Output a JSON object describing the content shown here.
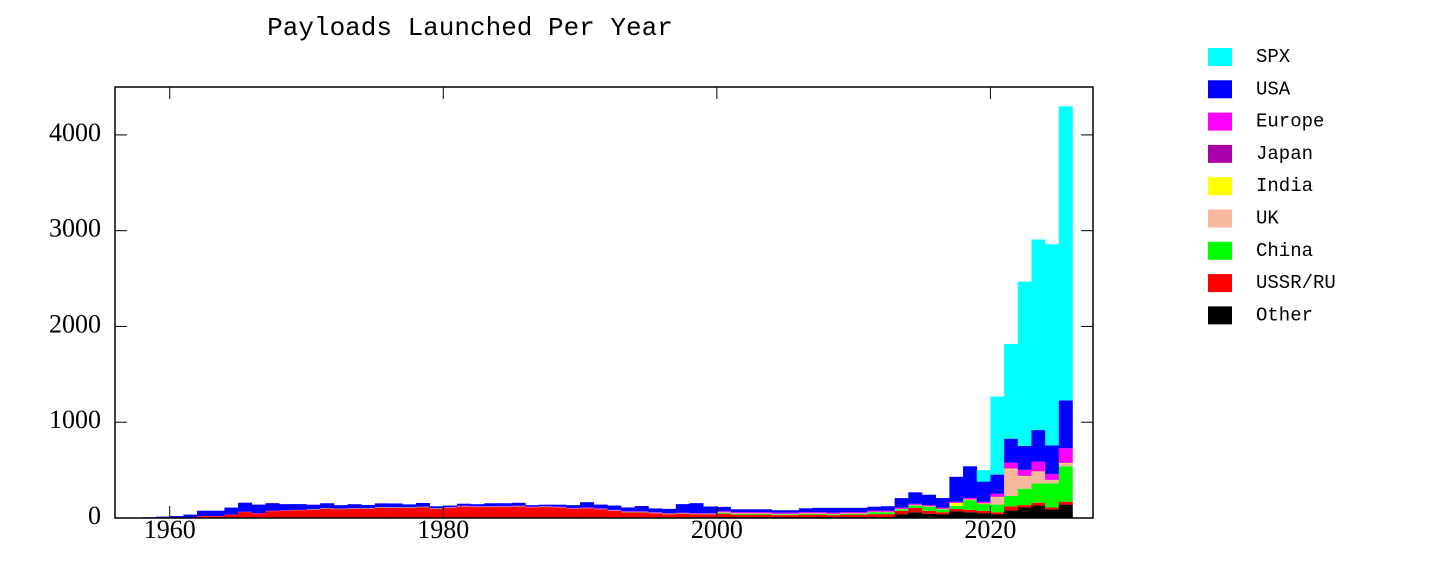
{
  "chart_data": {
    "type": "stacked_histogram",
    "title": "Payloads Launched Per Year",
    "bins": [
      1957,
      1958,
      1959,
      1960,
      1961,
      1962,
      1963,
      1964,
      1965,
      1966,
      1967,
      1968,
      1969,
      1970,
      1971,
      1972,
      1973,
      1974,
      1975,
      1976,
      1977,
      1978,
      1979,
      1980,
      1981,
      1982,
      1983,
      1984,
      1985,
      1986,
      1987,
      1988,
      1989,
      1990,
      1991,
      1992,
      1993,
      1994,
      1995,
      1996,
      1997,
      1998,
      1999,
      2000,
      2001,
      2002,
      2003,
      2004,
      2005,
      2006,
      2007,
      2008,
      2009,
      2010,
      2011,
      2012,
      2013,
      2014,
      2015,
      2016,
      2017,
      2018,
      2019,
      2020,
      2021,
      2022,
      2023,
      2024,
      2025,
      2026
    ],
    "xlim": [
      1956,
      2027.5
    ],
    "xticks": [
      1960,
      1980,
      2000,
      2020
    ],
    "ylim": [
      0,
      4500
    ],
    "yticks": [
      0,
      1000,
      2000,
      3000,
      4000
    ],
    "series": [
      {
        "name": "SPX",
        "color": "#00ffff",
        "values": [
          0,
          0,
          0,
          0,
          0,
          0,
          0,
          0,
          0,
          0,
          0,
          0,
          0,
          0,
          0,
          0,
          0,
          0,
          0,
          0,
          0,
          0,
          0,
          0,
          0,
          0,
          0,
          0,
          0,
          0,
          0,
          0,
          0,
          0,
          0,
          0,
          0,
          0,
          0,
          0,
          0,
          0,
          0,
          0,
          0,
          0,
          0,
          0,
          0,
          0,
          0,
          0,
          0,
          0,
          0,
          0,
          0,
          0,
          0,
          0,
          0,
          2,
          120,
          815,
          990,
          1715,
          1990,
          2100,
          3070
        ]
      },
      {
        "name": "USA",
        "color": "#0000ff",
        "values": [
          0,
          7,
          11,
          17,
          29,
          55,
          55,
          73,
          95,
          90,
          80,
          65,
          60,
          45,
          50,
          35,
          40,
          32,
          38,
          38,
          28,
          38,
          18,
          16,
          20,
          20,
          30,
          30,
          30,
          15,
          15,
          20,
          30,
          55,
          40,
          45,
          40,
          55,
          40,
          45,
          90,
          105,
          70,
          45,
          30,
          30,
          30,
          25,
          25,
          40,
          45,
          50,
          45,
          45,
          40,
          45,
          100,
          120,
          110,
          100,
          260,
          330,
          210,
          200,
          250,
          250,
          330,
          300,
          500
        ]
      },
      {
        "name": "Europe",
        "color": "#ff00ff",
        "values": [
          0,
          0,
          0,
          0,
          0,
          0,
          0,
          0,
          2,
          2,
          2,
          2,
          2,
          2,
          2,
          2,
          2,
          2,
          2,
          2,
          2,
          2,
          2,
          5,
          5,
          5,
          5,
          5,
          5,
          5,
          5,
          5,
          5,
          5,
          5,
          5,
          5,
          5,
          5,
          5,
          5,
          5,
          5,
          10,
          10,
          10,
          10,
          10,
          10,
          10,
          10,
          10,
          10,
          10,
          10,
          10,
          10,
          10,
          10,
          10,
          10,
          15,
          15,
          30,
          60,
          60,
          100,
          60,
          150
        ]
      },
      {
        "name": "Japan",
        "color": "#aa00aa",
        "values": [
          0,
          0,
          0,
          0,
          0,
          0,
          0,
          0,
          0,
          0,
          0,
          0,
          0,
          2,
          2,
          2,
          2,
          2,
          2,
          2,
          2,
          2,
          2,
          2,
          2,
          2,
          2,
          2,
          2,
          2,
          2,
          2,
          2,
          3,
          3,
          3,
          3,
          3,
          3,
          3,
          3,
          3,
          3,
          3,
          3,
          3,
          3,
          3,
          3,
          3,
          3,
          3,
          3,
          3,
          3,
          3,
          3,
          3,
          3,
          3,
          3,
          3,
          3,
          3,
          3,
          3,
          3,
          3,
          3
        ]
      },
      {
        "name": "India",
        "color": "#ffff00",
        "values": [
          0,
          0,
          0,
          0,
          0,
          0,
          0,
          0,
          0,
          0,
          0,
          0,
          0,
          0,
          0,
          0,
          0,
          0,
          1,
          1,
          1,
          1,
          1,
          1,
          1,
          1,
          1,
          1,
          1,
          1,
          1,
          1,
          1,
          1,
          1,
          1,
          1,
          1,
          1,
          1,
          1,
          1,
          1,
          3,
          3,
          3,
          3,
          3,
          3,
          3,
          3,
          3,
          3,
          3,
          3,
          3,
          3,
          3,
          3,
          3,
          30,
          5,
          5,
          5,
          5,
          5,
          5,
          5,
          5
        ]
      },
      {
        "name": "UK",
        "color": "#f8b8a0",
        "values": [
          0,
          0,
          0,
          0,
          0,
          1,
          1,
          1,
          1,
          1,
          1,
          1,
          1,
          1,
          1,
          1,
          1,
          1,
          1,
          0,
          0,
          0,
          0,
          0,
          0,
          0,
          0,
          0,
          0,
          0,
          0,
          0,
          0,
          0,
          0,
          0,
          0,
          0,
          0,
          0,
          0,
          0,
          0,
          2,
          2,
          2,
          2,
          2,
          2,
          2,
          2,
          2,
          2,
          2,
          2,
          2,
          2,
          2,
          2,
          2,
          2,
          2,
          2,
          75,
          280,
          130,
          120,
          30,
          30
        ]
      },
      {
        "name": "China",
        "color": "#00ff00",
        "values": [
          0,
          0,
          0,
          0,
          0,
          0,
          0,
          0,
          0,
          0,
          0,
          0,
          0,
          2,
          2,
          2,
          2,
          2,
          2,
          2,
          2,
          2,
          2,
          2,
          2,
          2,
          2,
          2,
          2,
          2,
          2,
          2,
          2,
          2,
          2,
          2,
          2,
          2,
          2,
          2,
          2,
          2,
          2,
          8,
          8,
          8,
          8,
          8,
          8,
          8,
          8,
          8,
          8,
          8,
          20,
          20,
          15,
          25,
          40,
          30,
          30,
          100,
          70,
          80,
          110,
          170,
          200,
          250,
          370
        ]
      },
      {
        "name": "USSR/RU",
        "color": "#ff0000",
        "values": [
          2,
          1,
          3,
          3,
          6,
          20,
          20,
          35,
          60,
          45,
          70,
          75,
          80,
          85,
          95,
          90,
          95,
          95,
          105,
          105,
          105,
          110,
          95,
          100,
          115,
          110,
          110,
          110,
          115,
          105,
          110,
          105,
          90,
          95,
          85,
          70,
          55,
          55,
          45,
          35,
          40,
          35,
          35,
          35,
          25,
          25,
          25,
          20,
          20,
          25,
          25,
          20,
          25,
          25,
          30,
          30,
          35,
          45,
          30,
          20,
          25,
          25,
          25,
          20,
          40,
          25,
          30,
          20,
          30
        ]
      },
      {
        "name": "Other",
        "color": "#000000",
        "values": [
          0,
          0,
          0,
          0,
          0,
          0,
          0,
          0,
          2,
          2,
          2,
          2,
          2,
          2,
          2,
          2,
          2,
          2,
          2,
          2,
          2,
          2,
          2,
          4,
          4,
          4,
          4,
          4,
          4,
          4,
          4,
          4,
          4,
          4,
          4,
          4,
          4,
          4,
          4,
          4,
          4,
          4,
          4,
          10,
          10,
          10,
          10,
          10,
          10,
          10,
          10,
          10,
          10,
          10,
          10,
          10,
          40,
          60,
          45,
          40,
          70,
          60,
          50,
          40,
          80,
          110,
          130,
          90,
          140
        ]
      }
    ]
  }
}
